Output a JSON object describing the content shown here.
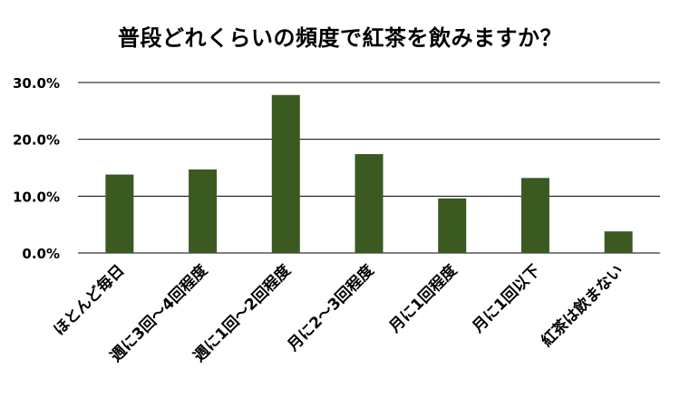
{
  "chart_data": {
    "type": "bar",
    "title": "普段どれくらいの頻度で紅茶を飲みますか？",
    "xlabel": "",
    "ylabel": "",
    "categories": [
      "ほとんど毎日",
      "週に3回〜4回程度",
      "週に1回〜2回程度",
      "月に2〜3回程度",
      "月に1回程度",
      "月に1回以下",
      "紅茶は飲まない"
    ],
    "series": [
      {
        "values": [
          13.8,
          14.7,
          27.8,
          17.4,
          9.6,
          13.2,
          3.8
        ]
      }
    ],
    "y_ticks": [
      "0.0%",
      "10.0%",
      "20.0%",
      "30.0%"
    ],
    "ylim": [
      0,
      30
    ],
    "grid": true,
    "legend": "none",
    "colors": {
      "bar": "#3b5a22",
      "grid": "#000000",
      "text": "#000000"
    }
  }
}
